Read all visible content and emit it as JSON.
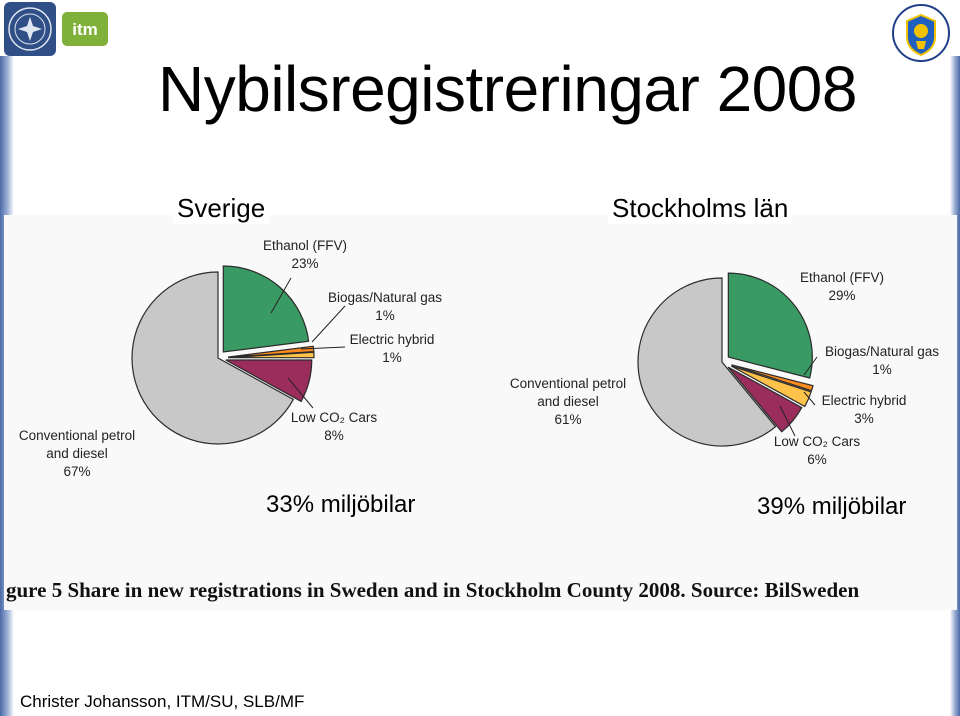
{
  "title": "Nybilsregistreringar 2008",
  "footer": "Christer Johansson, ITM/SU, SLB/MF",
  "logos": {
    "itm_text": "itm"
  },
  "colors": {
    "conventional": "#c8c8c8",
    "ethanol": "#3a9a63",
    "biogas": "#ff8a1e",
    "electric": "#ffc24a",
    "lowco2": "#9b2d5c",
    "band": "#4a6aa8"
  },
  "figure": {
    "caption": "gure 5  Share in new registrations in Sweden and in Stockholm County 2008. Source: BilSweden"
  },
  "chart_data": [
    {
      "type": "pie",
      "title": "Sverige",
      "summary": "33% miljöbilar",
      "categories": [
        "Conventional petrol and diesel",
        "Ethanol (FFV)",
        "Biogas/Natural gas",
        "Electric hybrid",
        "Low CO2 Cars"
      ],
      "values": [
        67,
        23,
        1,
        1,
        8
      ],
      "labels": [
        {
          "lines": [
            "Conventional petrol",
            "and diesel"
          ],
          "value": "67%"
        },
        {
          "lines": [
            "Ethanol (FFV)"
          ],
          "value": "23%"
        },
        {
          "lines": [
            "Biogas/Natural gas"
          ],
          "value": "1%"
        },
        {
          "lines": [
            "Electric hybrid"
          ],
          "value": "1%"
        },
        {
          "lines": [
            "Low CO₂ Cars"
          ],
          "value": "8%"
        }
      ]
    },
    {
      "type": "pie",
      "title": "Stockholms län",
      "summary": "39% miljöbilar",
      "categories": [
        "Conventional petrol and diesel",
        "Ethanol (FFV)",
        "Biogas/Natural gas",
        "Electric hybrid",
        "Low CO2 Cars"
      ],
      "values": [
        61,
        29,
        1,
        3,
        6
      ],
      "labels": [
        {
          "lines": [
            "Conventional petrol",
            "and diesel"
          ],
          "value": "61%"
        },
        {
          "lines": [
            "Ethanol (FFV)"
          ],
          "value": "29%"
        },
        {
          "lines": [
            "Biogas/Natural gas"
          ],
          "value": "1%"
        },
        {
          "lines": [
            "Electric hybrid"
          ],
          "value": "3%"
        },
        {
          "lines": [
            "Low CO₂ Cars"
          ],
          "value": "6%"
        }
      ]
    }
  ]
}
